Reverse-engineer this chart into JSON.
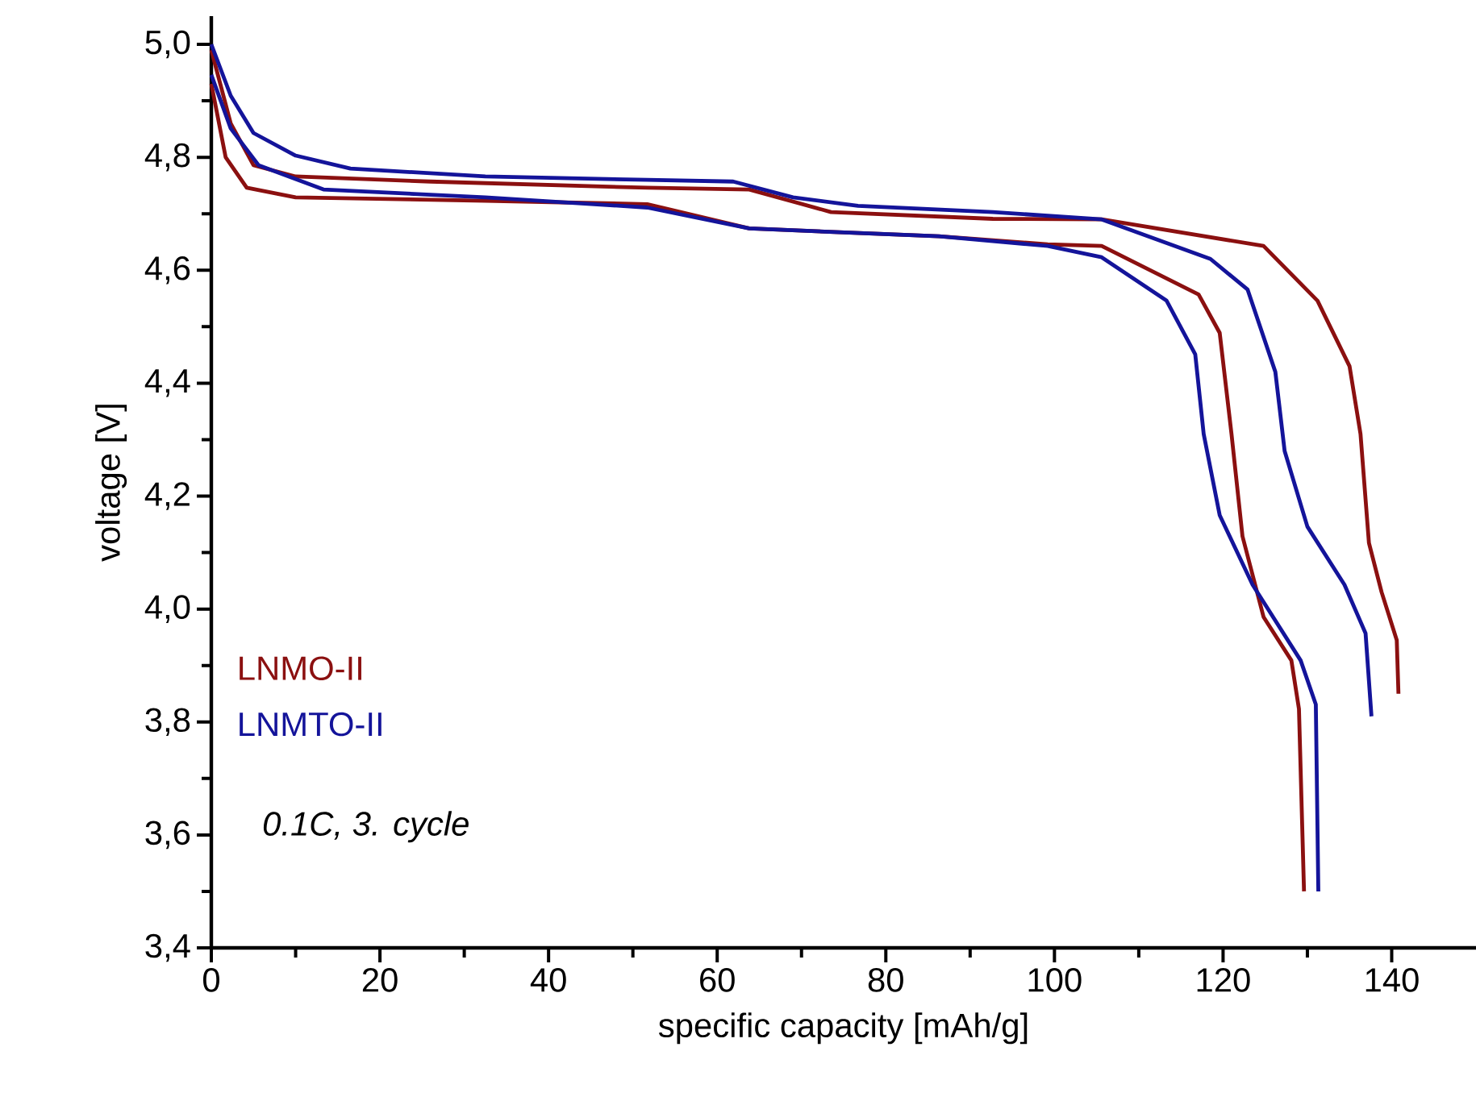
{
  "chart_data": {
    "type": "line",
    "xlabel": "specific capacity [mAh/g]",
    "ylabel": "voltage [V]",
    "xlim": [
      0,
      150
    ],
    "ylim": [
      3.4,
      5.05
    ],
    "xticks": [
      0,
      20,
      40,
      60,
      80,
      100,
      120,
      140
    ],
    "yticks": [
      {
        "value": 3.4,
        "label": "3,4"
      },
      {
        "value": 3.6,
        "label": "3,6"
      },
      {
        "value": 3.8,
        "label": "3,8"
      },
      {
        "value": 4.0,
        "label": "4,0"
      },
      {
        "value": 4.2,
        "label": "4,2"
      },
      {
        "value": 4.4,
        "label": "4,4"
      },
      {
        "value": 4.6,
        "label": "4,6"
      },
      {
        "value": 4.8,
        "label": "4,8"
      },
      {
        "value": 5.0,
        "label": "5,0"
      }
    ],
    "grid": false,
    "legend": "bottom left",
    "marker": "none",
    "line_style": "solid",
    "annotations": [
      "0.1C, 3. cycle"
    ],
    "series": [
      {
        "name": "LNMO-II",
        "color": "#8b1010",
        "x": [
          0,
          2.3,
          5,
          10,
          26,
          51.7,
          63.8,
          73.5,
          92.7,
          105.6,
          124.8,
          131.2,
          135,
          136.3,
          137.3,
          138.8,
          140.6,
          140.8
        ],
        "values": [
          4.99,
          4.86,
          4.786,
          4.766,
          4.757,
          4.746,
          4.743,
          4.703,
          4.691,
          4.69,
          4.643,
          4.546,
          4.43,
          4.31,
          4.117,
          4.03,
          3.945,
          3.85
        ]
      },
      {
        "color": "#8b1010",
        "x": [
          0,
          1.7,
          4.2,
          10,
          32.5,
          51.7,
          63.8,
          86.3,
          99.2,
          105.6,
          117.1,
          119.6,
          121,
          122.3,
          124.8,
          128.1,
          129,
          129.6
        ],
        "values": [
          4.93,
          4.8,
          4.746,
          4.729,
          4.723,
          4.717,
          4.674,
          4.66,
          4.646,
          4.643,
          4.557,
          4.489,
          4.31,
          4.129,
          3.986,
          3.909,
          3.823,
          3.5
        ]
      },
      {
        "name": "LNMTO-II",
        "color": "#14149a",
        "x": [
          0,
          2.3,
          5,
          10,
          16.5,
          32.5,
          51.7,
          61.9,
          69,
          76.7,
          92.7,
          105.6,
          118.5,
          122.9,
          126.2,
          127.3,
          130,
          134.4,
          136.9,
          137.6
        ],
        "values": [
          5.0,
          4.909,
          4.843,
          4.803,
          4.78,
          4.766,
          4.76,
          4.757,
          4.729,
          4.714,
          4.703,
          4.69,
          4.62,
          4.566,
          4.42,
          4.28,
          4.146,
          4.043,
          3.957,
          3.81
        ]
      },
      {
        "color": "#14149a",
        "x": [
          0,
          2.3,
          5.6,
          13.3,
          32.5,
          51.7,
          63.8,
          86.3,
          99.2,
          105.6,
          113.3,
          116.7,
          117.7,
          119.6,
          123.5,
          129.2,
          131,
          131.3
        ],
        "values": [
          4.946,
          4.851,
          4.786,
          4.743,
          4.729,
          4.711,
          4.674,
          4.66,
          4.643,
          4.623,
          4.546,
          4.451,
          4.31,
          4.166,
          4.043,
          3.909,
          3.831,
          3.5
        ]
      }
    ]
  }
}
